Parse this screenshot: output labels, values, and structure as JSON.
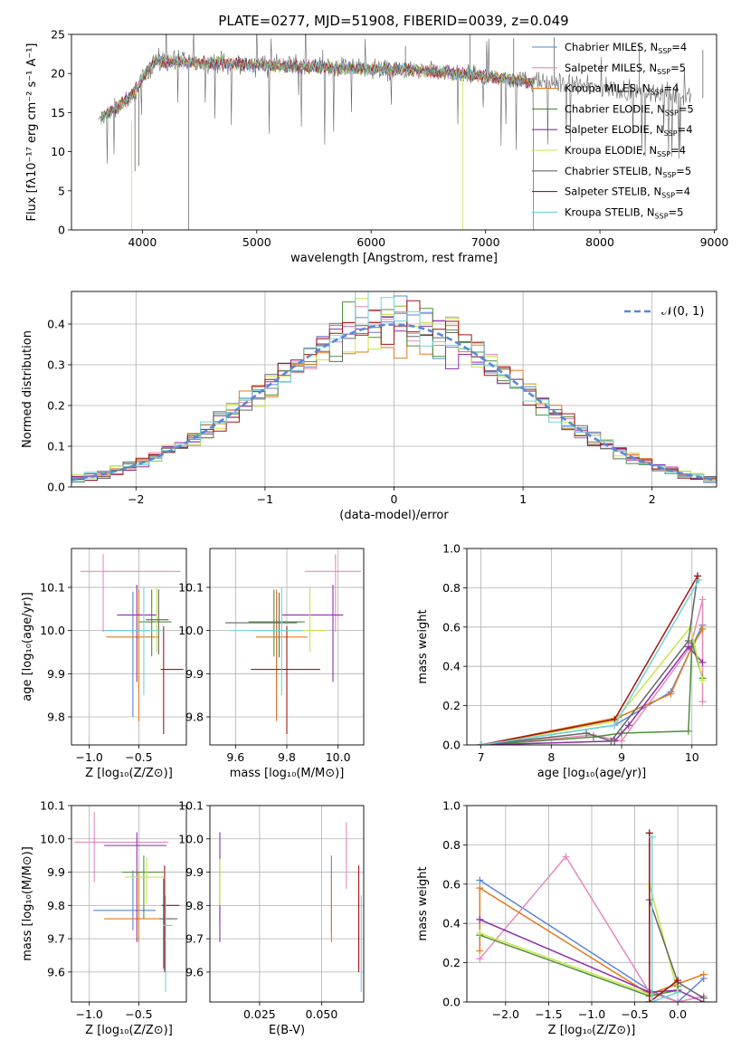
{
  "title": "PLATE=0277, MJD=51908, FIBERID=0039, z=0.049",
  "colors": {
    "chabrier_miles": "#5b86d6",
    "salpeter_miles": "#e889bd",
    "kroupa_miles": "#e07b1e",
    "chabrier_elodie": "#4f8f3c",
    "salpeter_elodie": "#8e2ea8",
    "kroupa_elodie": "#c8e64a",
    "chabrier_stelib": "#666666",
    "salpeter_stelib": "#a31414",
    "kroupa_stelib": "#72d3d9",
    "gaussian": "#5b86d6",
    "grid": "#b0b0b0"
  },
  "chart_data": [
    {
      "id": "spectrum",
      "type": "line",
      "xlabel": "wavelength [Angstrom, rest frame]",
      "ylabel": "Flux [fλ10⁻¹⁷ erg cm⁻² s⁻¹ A⁻¹]",
      "xlim": [
        3380,
        9020
      ],
      "ylim": [
        0,
        25
      ],
      "xticks": [
        4000,
        5000,
        6000,
        7000,
        8000,
        9000
      ],
      "yticks": [
        0,
        5,
        10,
        15,
        20,
        25
      ],
      "grid": false,
      "legend_position": "top-right",
      "data_range": [
        3620,
        8800
      ],
      "model_end": 7420,
      "legend": [
        {
          "label": "Chabrier MILES, N",
          "sub": "SSP",
          "suffix": "=4",
          "color": "#5b86d6"
        },
        {
          "label": "Salpeter MILES, N",
          "sub": "SSP",
          "suffix": "=5",
          "color": "#e889bd"
        },
        {
          "label": "Kroupa MILES, N",
          "sub": "SSP",
          "suffix": "=4",
          "color": "#e07b1e"
        },
        {
          "label": "Chabrier ELODIE, N",
          "sub": "SSP",
          "suffix": "=5",
          "color": "#4f8f3c"
        },
        {
          "label": "Salpeter ELODIE, N",
          "sub": "SSP",
          "suffix": "=4",
          "color": "#8e2ea8"
        },
        {
          "label": "Kroupa ELODIE, N",
          "sub": "SSP",
          "suffix": "=4",
          "color": "#c8e64a"
        },
        {
          "label": "Chabrier STELIB, N",
          "sub": "SSP",
          "suffix": "=5",
          "color": "#666666"
        },
        {
          "label": "Salpeter STELIB, N",
          "sub": "SSP",
          "suffix": "=4",
          "color": "#a31414"
        },
        {
          "label": "Kroupa STELIB, N",
          "sub": "SSP",
          "suffix": "=5",
          "color": "#72d3d9"
        }
      ]
    },
    {
      "id": "residuals",
      "type": "histogram",
      "xlabel": "(data-model)/error",
      "ylabel": "Normed distribution",
      "xlim": [
        -2.5,
        2.5
      ],
      "ylim": [
        0,
        0.48
      ],
      "xticks": [
        -2,
        -1,
        0,
        1,
        2
      ],
      "yticks": [
        0.0,
        0.1,
        0.2,
        0.3,
        0.4
      ],
      "grid": true,
      "legend_position": "top-right",
      "legend_label": "𝒩(0, 1)",
      "bin_width": 0.1
    },
    {
      "id": "age_vs_Z",
      "type": "errorbar",
      "xlabel": "Z [log₁₀(Z/Z⊙)]",
      "ylabel": "age  [log₁₀(age/yr)]",
      "xlim": [
        -1.18,
        -0.02
      ],
      "ylim": [
        9.735,
        10.19
      ],
      "xticks": [
        -1.0,
        -0.5
      ],
      "yticks": [
        9.8,
        9.9,
        10.0,
        10.1
      ],
      "points": [
        {
          "c": "#5b86d6",
          "x": -0.56,
          "xerr": [
            0.3,
            0.23
          ],
          "y": 10.0,
          "yerr": [
            0.2,
            0.09
          ]
        },
        {
          "c": "#e889bd",
          "x": -0.86,
          "xerr": [
            0.23,
            0.78
          ],
          "y": 10.137,
          "yerr": [
            0.14,
            0.04
          ]
        },
        {
          "c": "#e07b1e",
          "x": -0.5,
          "xerr": [
            0.33,
            0.2
          ],
          "y": 9.985,
          "yerr": [
            0.195,
            0.11
          ]
        },
        {
          "c": "#4f8f3c",
          "x": -0.37,
          "xerr": [
            0.13,
            0.2
          ],
          "y": 10.02,
          "yerr": [
            0.08,
            0.075
          ]
        },
        {
          "c": "#8e2ea8",
          "x": -0.52,
          "xerr": [
            0.2,
            0.2
          ],
          "y": 10.036,
          "yerr": [
            0.155,
            0.07
          ]
        },
        {
          "c": "#c8e64a",
          "x": -0.32,
          "xerr": [
            0.1,
            0.05
          ],
          "y": 10.0,
          "yerr": [
            0.05,
            0.1
          ]
        },
        {
          "c": "#666666",
          "x": -0.3,
          "xerr": [
            0.13,
            0.1
          ],
          "y": 10.025,
          "yerr": [
            0.08,
            0.07
          ]
        },
        {
          "c": "#a31414",
          "x": -0.25,
          "xerr": [
            0.03,
            0.2
          ],
          "y": 9.91,
          "yerr": [
            0.15,
            0.1
          ]
        },
        {
          "c": "#72d3d9",
          "x": -0.45,
          "xerr": [
            0.4,
            0.2
          ],
          "y": 10.0,
          "yerr": [
            0.15,
            0.1
          ]
        }
      ]
    },
    {
      "id": "age_vs_mass",
      "type": "errorbar",
      "xlabel": "mass [log₁₀(M/M⊙)]",
      "ylabel": "",
      "xlim": [
        9.5,
        10.1
      ],
      "ylim": [
        9.735,
        10.19
      ],
      "xticks": [
        9.6,
        9.8,
        10.0
      ],
      "yticks": [
        9.8,
        9.9,
        10.0,
        10.1
      ],
      "points": [
        {
          "c": "#5b86d6",
          "x": 9.76,
          "xerr": [
            0.1,
            0.1
          ],
          "y": 10.0,
          "yerr": [
            0.2,
            0.09
          ]
        },
        {
          "c": "#e889bd",
          "x": 9.99,
          "xerr": [
            0.12,
            0.1
          ],
          "y": 10.137,
          "yerr": [
            0.14,
            0.04
          ]
        },
        {
          "c": "#e07b1e",
          "x": 9.76,
          "xerr": [
            0.08,
            0.12
          ],
          "y": 9.985,
          "yerr": [
            0.195,
            0.11
          ]
        },
        {
          "c": "#4f8f3c",
          "x": 9.75,
          "xerr": [
            0.1,
            0.12
          ],
          "y": 10.02,
          "yerr": [
            0.08,
            0.075
          ]
        },
        {
          "c": "#8e2ea8",
          "x": 9.98,
          "xerr": [
            0.2,
            0.04
          ],
          "y": 10.036,
          "yerr": [
            0.155,
            0.07
          ]
        },
        {
          "c": "#c8e64a",
          "x": 9.89,
          "xerr": [
            0.1,
            0.06
          ],
          "y": 10.0,
          "yerr": [
            0.05,
            0.1
          ]
        },
        {
          "c": "#666666",
          "x": 9.77,
          "xerr": [
            0.21,
            0.07
          ],
          "y": 10.018,
          "yerr": [
            0.08,
            0.07
          ]
        },
        {
          "c": "#a31414",
          "x": 9.8,
          "xerr": [
            0.14,
            0.13
          ],
          "y": 9.91,
          "yerr": [
            0.15,
            0.1
          ]
        },
        {
          "c": "#72d3d9",
          "x": 9.78,
          "xerr": [
            0.2,
            0.08
          ],
          "y": 10.0,
          "yerr": [
            0.15,
            0.1
          ]
        }
      ]
    },
    {
      "id": "mass_weight_vs_age",
      "type": "line",
      "xlabel": "age  [log₁₀(age/yr)]",
      "ylabel": "mass weight",
      "xlim": [
        6.8,
        10.35
      ],
      "ylim": [
        0,
        1.0
      ],
      "xticks": [
        7,
        8,
        9,
        10
      ],
      "yticks": [
        0.0,
        0.2,
        0.4,
        0.6,
        0.8,
        1.0
      ],
      "grid": true,
      "series": [
        {
          "c": "#5b86d6",
          "x": [
            7.0,
            8.9,
            9.7,
            10.0,
            10.15
          ],
          "y": [
            0.0,
            0.1,
            0.27,
            0.5,
            0.61
          ]
        },
        {
          "c": "#e889bd",
          "x": [
            7.0,
            8.6,
            9.0,
            9.98,
            10.15,
            10.15
          ],
          "y": [
            0.0,
            0.05,
            0.02,
            0.5,
            0.74,
            0.22
          ]
        },
        {
          "c": "#e07b1e",
          "x": [
            7.0,
            8.95,
            9.7,
            10.0,
            10.15
          ],
          "y": [
            0.0,
            0.14,
            0.26,
            0.5,
            0.59
          ]
        },
        {
          "c": "#4f8f3c",
          "x": [
            7.0,
            8.6,
            9.0,
            9.95,
            10.0,
            10.15
          ],
          "y": [
            0.0,
            0.04,
            0.06,
            0.07,
            0.52,
            0.34
          ]
        },
        {
          "c": "#8e2ea8",
          "x": [
            7.0,
            8.9,
            9.1,
            9.95,
            10.15
          ],
          "y": [
            0.0,
            0.02,
            0.1,
            0.5,
            0.42
          ]
        },
        {
          "c": "#c8e64a",
          "x": [
            7.0,
            8.9,
            9.98,
            10.15
          ],
          "y": [
            0.0,
            0.12,
            0.6,
            0.33
          ]
        },
        {
          "c": "#666666",
          "x": [
            7.0,
            8.5,
            8.85,
            9.95,
            10.08
          ],
          "y": [
            0.0,
            0.06,
            0.02,
            0.53,
            0.86
          ]
        },
        {
          "c": "#a31414",
          "x": [
            7.0,
            8.9,
            10.08
          ],
          "y": [
            0.0,
            0.13,
            0.86
          ]
        },
        {
          "c": "#72d3d9",
          "x": [
            7.0,
            8.9,
            10.1
          ],
          "y": [
            0.0,
            0.1,
            0.84
          ]
        }
      ]
    },
    {
      "id": "mass_vs_Z",
      "type": "errorbar",
      "xlabel": "Z [log₁₀(Z/Z⊙)]",
      "ylabel": "mass [log₁₀(M/M⊙)]",
      "xlim": [
        -1.18,
        -0.02
      ],
      "ylim": [
        9.51,
        10.1
      ],
      "xticks": [
        -1.0,
        -0.5
      ],
      "yticks": [
        9.6,
        9.7,
        9.8,
        9.9,
        10.0,
        10.1
      ],
      "points": [
        {
          "c": "#5b86d6",
          "x": -0.56,
          "xerr": [
            0.4,
            0.23
          ],
          "y": 9.785,
          "yerr": [
            0.06,
            0.12
          ]
        },
        {
          "c": "#e889bd",
          "x": -0.95,
          "xerr": [
            0.2,
            0.75
          ],
          "y": 9.99,
          "yerr": [
            0.12,
            0.09
          ]
        },
        {
          "c": "#e07b1e",
          "x": -0.5,
          "xerr": [
            0.35,
            0.32
          ],
          "y": 9.76,
          "yerr": [
            0.07,
            0.14
          ]
        },
        {
          "c": "#4f8f3c",
          "x": -0.45,
          "xerr": [
            0.22,
            0.2
          ],
          "y": 9.9,
          "yerr": [
            0.14,
            0.05
          ]
        },
        {
          "c": "#8e2ea8",
          "x": -0.52,
          "xerr": [
            0.33,
            0.3
          ],
          "y": 9.98,
          "yerr": [
            0.29,
            0.04
          ]
        },
        {
          "c": "#c8e64a",
          "x": -0.42,
          "xerr": [
            0.22,
            0.17
          ],
          "y": 9.885,
          "yerr": [
            0.08,
            0.06
          ]
        },
        {
          "c": "#666666",
          "x": -0.25,
          "xerr": [
            0.04,
            0.14
          ],
          "y": 9.76,
          "yerr": [
            0.15,
            0.12
          ]
        },
        {
          "c": "#a31414",
          "x": -0.24,
          "xerr": [
            0.03,
            0.15
          ],
          "y": 9.8,
          "yerr": [
            0.2,
            0.12
          ]
        },
        {
          "c": "#72d3d9",
          "x": -0.23,
          "xerr": [
            0.03,
            0.07
          ],
          "y": 9.74,
          "yerr": [
            0.2,
            0.09
          ]
        }
      ]
    },
    {
      "id": "mass_vs_EBV",
      "type": "errorbar",
      "xlabel": "E(B-V)",
      "ylabel": "",
      "xlim": [
        0.005,
        0.067
      ],
      "ylim": [
        9.51,
        10.1
      ],
      "xticks": [
        0.025,
        0.05
      ],
      "tick_labels": [
        "0.025",
        "0.050"
      ],
      "yticks": [
        9.6,
        9.7,
        9.8,
        9.9,
        10.0,
        10.1
      ],
      "points": [
        {
          "c": "#5b86d6",
          "x": 0.054,
          "xerr": [
            0,
            0
          ],
          "y": 9.88,
          "yerr": [
            0.16,
            0.07
          ]
        },
        {
          "c": "#e889bd",
          "x": 0.06,
          "xerr": [
            0,
            0
          ],
          "y": 9.97,
          "yerr": [
            0.12,
            0.08
          ]
        },
        {
          "c": "#e07b1e",
          "x": 0.054,
          "xerr": [
            0,
            0
          ],
          "y": 9.76,
          "yerr": [
            0.07,
            0.13
          ]
        },
        {
          "c": "#4f8f3c",
          "x": 0.009,
          "xerr": [
            0,
            0
          ],
          "y": 9.9,
          "yerr": [
            0.15,
            0.05
          ]
        },
        {
          "c": "#8e2ea8",
          "x": 0.009,
          "xerr": [
            0,
            0
          ],
          "y": 9.98,
          "yerr": [
            0.29,
            0.04
          ]
        },
        {
          "c": "#c8e64a",
          "x": 0.009,
          "xerr": [
            0,
            0
          ],
          "y": 9.88,
          "yerr": [
            0.08,
            0.06
          ]
        },
        {
          "c": "#666666",
          "x": 0.065,
          "xerr": [
            0,
            0
          ],
          "y": 9.76,
          "yerr": [
            0.15,
            0.12
          ]
        },
        {
          "c": "#a31414",
          "x": 0.065,
          "xerr": [
            0,
            0
          ],
          "y": 9.8,
          "yerr": [
            0.2,
            0.12
          ]
        },
        {
          "c": "#72d3d9",
          "x": 0.066,
          "xerr": [
            0,
            0
          ],
          "y": 9.74,
          "yerr": [
            0.2,
            0.09
          ]
        }
      ]
    },
    {
      "id": "mass_weight_vs_Z",
      "type": "line",
      "xlabel": "Z [log₁₀(Z/Z⊙)]",
      "ylabel": "mass weight",
      "xlim": [
        -2.45,
        0.45
      ],
      "ylim": [
        0,
        1.0
      ],
      "xticks": [
        -2.0,
        -1.5,
        -1.0,
        -0.5,
        0.0
      ],
      "yticks": [
        0.0,
        0.2,
        0.4,
        0.6,
        0.8,
        1.0
      ],
      "grid": true,
      "series": [
        {
          "c": "#5b86d6",
          "x": [
            -2.3,
            -0.33,
            0.0,
            0.3
          ],
          "y": [
            0.62,
            0.06,
            0.0,
            0.12
          ]
        },
        {
          "c": "#e889bd",
          "x": [
            -2.3,
            -1.3,
            -0.33,
            0.0,
            0.3
          ],
          "y": [
            0.22,
            0.74,
            0.05,
            0.0,
            0.03
          ]
        },
        {
          "c": "#e07b1e",
          "x": [
            -2.3,
            -2.3,
            -0.33,
            0.3
          ],
          "y": [
            0.26,
            0.58,
            0.04,
            0.14
          ]
        },
        {
          "c": "#4f8f3c",
          "x": [
            -2.3,
            -0.33,
            0.0,
            0.0
          ],
          "y": [
            0.34,
            0.03,
            0.06,
            0.08
          ]
        },
        {
          "c": "#8e2ea8",
          "x": [
            -2.3,
            -0.33,
            0.0,
            0.3
          ],
          "y": [
            0.42,
            0.05,
            0.06,
            0.0
          ]
        },
        {
          "c": "#c8e64a",
          "x": [
            -2.3,
            -0.33,
            -0.33,
            0.0
          ],
          "y": [
            0.35,
            0.04,
            0.6,
            0.05
          ]
        },
        {
          "c": "#666666",
          "x": [
            -0.33,
            -0.33,
            -0.33,
            0.0,
            0.3
          ],
          "y": [
            0.86,
            0.0,
            0.52,
            0.1,
            0.02
          ]
        },
        {
          "c": "#a31414",
          "x": [
            -0.33,
            -0.33,
            0.0
          ],
          "y": [
            0.86,
            0.0,
            0.11
          ]
        },
        {
          "c": "#72d3d9",
          "x": [
            -0.3,
            -0.3,
            0.0
          ],
          "y": [
            0.84,
            0.0,
            0.05
          ]
        }
      ]
    }
  ]
}
